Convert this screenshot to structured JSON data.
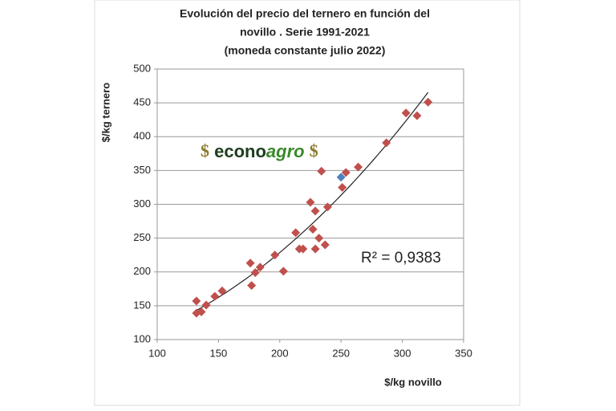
{
  "chart_data": {
    "type": "scatter",
    "title": [
      "Evolución del precio del ternero en función del",
      "novillo . Serie 1991-2021",
      "(moneda constante julio 2022)"
    ],
    "x_label": "$/kg novillo",
    "y_label": "$/kg ternero",
    "annotation": "R² = 0,9383",
    "logo": {
      "left": "$",
      "econo": "econo",
      "agro": "agro",
      "right": "$"
    },
    "series": [
      {
        "color": "#c0504d",
        "x": [
          132,
          132,
          136,
          140,
          147,
          153,
          177,
          176,
          180,
          184,
          196,
          203,
          213,
          216,
          219,
          225,
          227,
          229,
          229,
          232,
          234,
          237,
          239,
          251,
          254,
          264,
          287,
          303,
          312,
          321
        ],
        "values": [
          157,
          139,
          141,
          151,
          164,
          172,
          180,
          213,
          199,
          207,
          225,
          201,
          258,
          234,
          234,
          303,
          263,
          290,
          234,
          250,
          349,
          240,
          296,
          325,
          347,
          355,
          391,
          435,
          431,
          451
        ]
      },
      {
        "color": "#4f81bd",
        "x": [
          250
        ],
        "values": [
          340
        ]
      }
    ],
    "trendline": "polynomial",
    "xlim": [
      100,
      350
    ],
    "xticks": [
      100,
      150,
      200,
      250,
      300,
      350
    ],
    "ylim": [
      100,
      500
    ],
    "yticks": [
      100,
      150,
      200,
      250,
      300,
      350,
      400,
      450,
      500
    ],
    "grid": true
  }
}
